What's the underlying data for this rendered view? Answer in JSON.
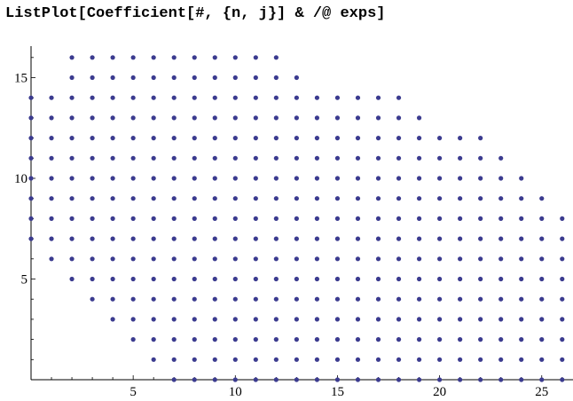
{
  "code_input": "ListPlot[Coefficient[#, {n, j}] & /@ exps]",
  "chart_data": {
    "type": "scatter",
    "xlim": [
      0,
      26.5
    ],
    "ylim": [
      0,
      16.5
    ],
    "x_ticks_major": [
      5,
      10,
      15,
      20,
      25
    ],
    "y_ticks_major": [
      5,
      10,
      15
    ],
    "x_tick_labels": [
      "5",
      "10",
      "15",
      "20",
      "25"
    ],
    "y_tick_labels": [
      "5",
      "10",
      "15"
    ],
    "grid": false,
    "point_color": "#3b3b8f",
    "rows": [
      {
        "y": 0,
        "x_from": 7,
        "x_to": 26
      },
      {
        "y": 1,
        "x_from": 6,
        "x_to": 26
      },
      {
        "y": 2,
        "x_from": 5,
        "x_to": 26
      },
      {
        "y": 3,
        "x_from": 4,
        "x_to": 26
      },
      {
        "y": 4,
        "x_from": 3,
        "x_to": 26
      },
      {
        "y": 5,
        "x_from": 2,
        "x_to": 26
      },
      {
        "y": 6,
        "x_from": 1,
        "x_to": 26
      },
      {
        "y": 7,
        "x_from": 0,
        "x_to": 26
      },
      {
        "y": 8,
        "x_from": 0,
        "x_to": 26
      },
      {
        "y": 9,
        "x_from": 0,
        "x_to": 25
      },
      {
        "y": 10,
        "x_from": 0,
        "x_to": 24
      },
      {
        "y": 11,
        "x_from": 0,
        "x_to": 23
      },
      {
        "y": 12,
        "x_from": 0,
        "x_to": 22
      },
      {
        "y": 13,
        "x_from": 0,
        "x_to": 19
      },
      {
        "y": 14,
        "x_from": 0,
        "x_to": 18
      },
      {
        "y": 15,
        "x_from": 2,
        "x_to": 13
      },
      {
        "y": 16,
        "x_from": 2,
        "x_to": 12
      }
    ]
  }
}
